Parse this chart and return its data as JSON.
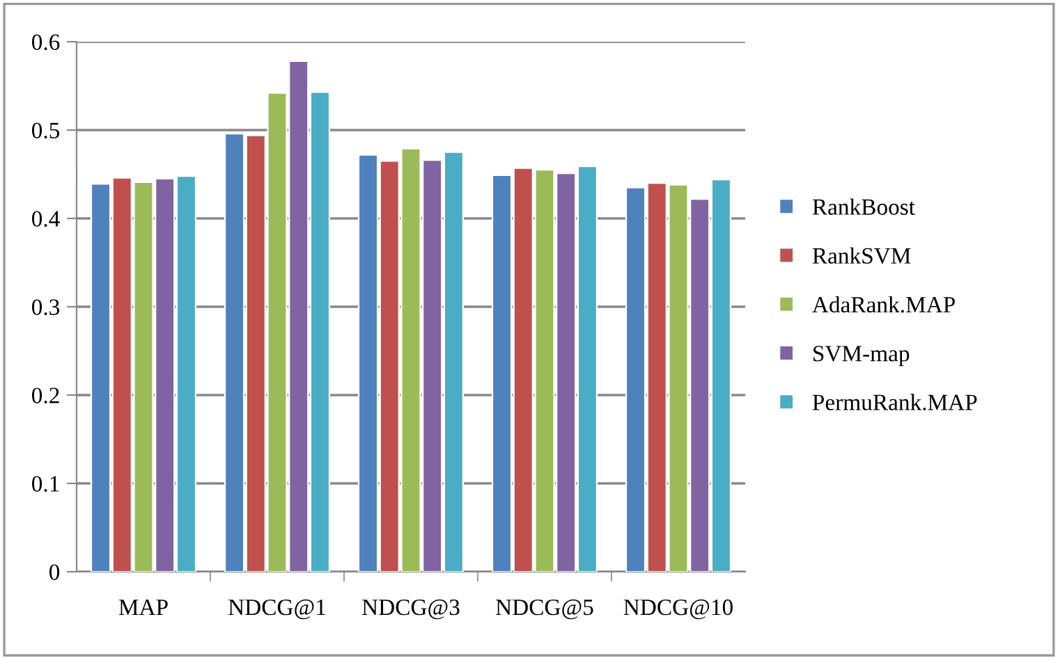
{
  "chart_data": {
    "type": "bar",
    "categories": [
      "MAP",
      "NDCG@1",
      "NDCG@3",
      "NDCG@5",
      "NDCG@10"
    ],
    "series": [
      {
        "name": "RankBoost",
        "color": "#4f81bd",
        "values": [
          0.439,
          0.496,
          0.472,
          0.449,
          0.435
        ]
      },
      {
        "name": "RankSVM",
        "color": "#c0504d",
        "values": [
          0.446,
          0.494,
          0.465,
          0.457,
          0.44
        ]
      },
      {
        "name": "AdaRank.MAP",
        "color": "#9bbb59",
        "values": [
          0.441,
          0.542,
          0.479,
          0.455,
          0.438
        ]
      },
      {
        "name": "SVM-map",
        "color": "#8064a2",
        "values": [
          0.445,
          0.578,
          0.466,
          0.451,
          0.422
        ]
      },
      {
        "name": "PermuRank.MAP",
        "color": "#4bacc6",
        "values": [
          0.448,
          0.543,
          0.475,
          0.459,
          0.444
        ]
      }
    ],
    "ylim": [
      0,
      0.6
    ],
    "yticks": [
      0,
      0.1,
      0.2,
      0.3,
      0.4,
      0.5,
      0.6
    ],
    "grid": "y",
    "legend": "right"
  }
}
